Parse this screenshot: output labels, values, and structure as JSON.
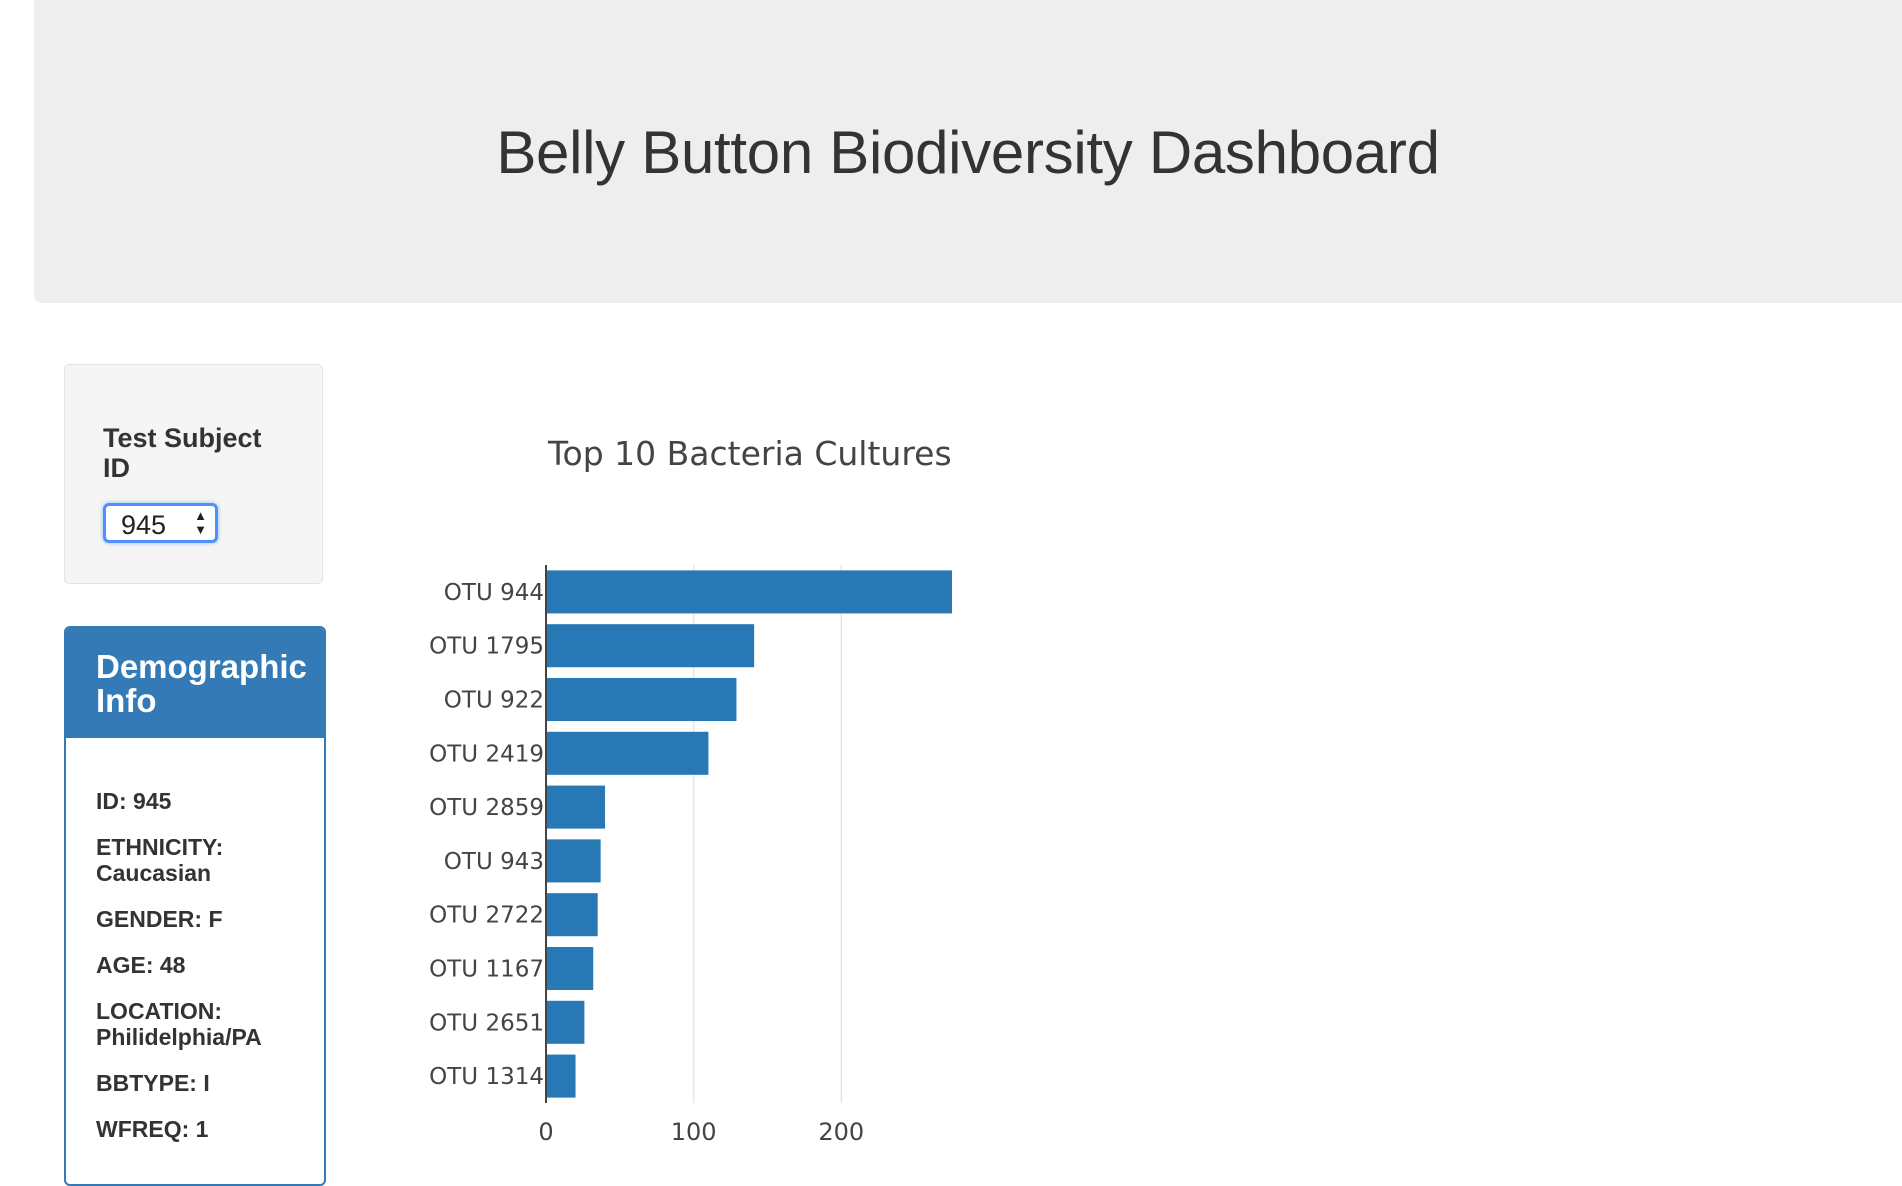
{
  "header": {
    "title": "Belly Button Biodiversity Dashboard"
  },
  "selector": {
    "label": "Test Subject ID",
    "selected": "945",
    "arrows": "▲\n▼"
  },
  "demographics": {
    "title": "Demographic Info",
    "rows": [
      "ID: 945",
      "ETHNICITY: Caucasian",
      "GENDER: F",
      "AGE: 48",
      "LOCATION: Philidelphia/PA",
      "BBTYPE: I",
      "WFREQ: 1"
    ]
  },
  "colors": {
    "bar": "#2878b5",
    "panel": "#337ab7",
    "jumbotron": "#eeeeee"
  },
  "chart_data": {
    "type": "bar",
    "orientation": "horizontal",
    "title": "Top 10 Bacteria Cultures",
    "xlabel": "",
    "ylabel": "",
    "categories": [
      "OTU 944",
      "OTU 1795",
      "OTU 922",
      "OTU 2419",
      "OTU 2859",
      "OTU 943",
      "OTU 2722",
      "OTU 1167",
      "OTU 2651",
      "OTU 1314"
    ],
    "values": [
      275,
      141,
      129,
      110,
      40,
      37,
      35,
      32,
      26,
      20
    ],
    "xlim": [
      0,
      275
    ],
    "xticks": [
      0,
      100,
      200
    ],
    "grid": true,
    "legend": "none"
  }
}
